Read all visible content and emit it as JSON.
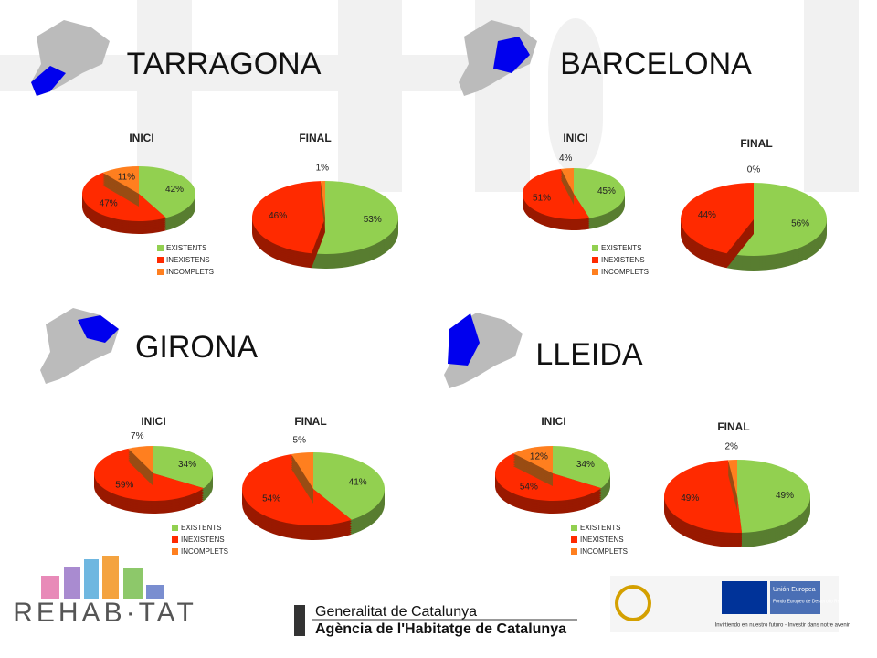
{
  "regions": [
    {
      "name": "TARRAGONA"
    },
    {
      "name": "BARCELONA"
    },
    {
      "name": "GIRONA"
    },
    {
      "name": "LLEIDA"
    }
  ],
  "chart_data": [
    {
      "type": "pie",
      "title": "INICI",
      "categories": [
        "EXISTENTS",
        "INEXISTENS",
        "INCOMPLETS"
      ],
      "values": [
        42,
        47,
        11
      ],
      "value_labels": [
        "42%",
        "47%",
        "11%"
      ],
      "colors": [
        "#92d050",
        "#ff2a00",
        "#ff7f1f"
      ],
      "legend": true
    },
    {
      "type": "pie",
      "title": "FINAL",
      "categories": [
        "EXISTENTS",
        "INEXISTENS",
        "INCOMPLETS"
      ],
      "values": [
        53,
        46,
        1
      ],
      "value_labels": [
        "53%",
        "46%",
        "1%"
      ],
      "colors": [
        "#92d050",
        "#ff2a00",
        "#ff7f1f"
      ],
      "legend": false
    },
    {
      "type": "pie",
      "title": "INICI",
      "categories": [
        "EXISTENTS",
        "INEXISTENS",
        "INCOMPLETS"
      ],
      "values": [
        45,
        51,
        4
      ],
      "value_labels": [
        "45%",
        "51%",
        "4%"
      ],
      "colors": [
        "#92d050",
        "#ff2a00",
        "#ff7f1f"
      ],
      "legend": true
    },
    {
      "type": "pie",
      "title": "FINAL",
      "categories": [
        "EXISTENTS",
        "INEXISTENS",
        "INCOMPLETS"
      ],
      "values": [
        56,
        44,
        0
      ],
      "value_labels": [
        "56%",
        "44%",
        "0%"
      ],
      "colors": [
        "#92d050",
        "#ff2a00",
        "#ff7f1f"
      ],
      "legend": false
    },
    {
      "type": "pie",
      "title": "INICI",
      "categories": [
        "EXISTENTS",
        "INEXISTENS",
        "INCOMPLETS"
      ],
      "values": [
        34,
        59,
        7
      ],
      "value_labels": [
        "34%",
        "59%",
        "7%"
      ],
      "colors": [
        "#92d050",
        "#ff2a00",
        "#ff7f1f"
      ],
      "legend": true
    },
    {
      "type": "pie",
      "title": "FINAL",
      "categories": [
        "EXISTENTS",
        "INEXISTENS",
        "INCOMPLETS"
      ],
      "values": [
        41,
        54,
        5
      ],
      "value_labels": [
        "41%",
        "54%",
        "5%"
      ],
      "colors": [
        "#92d050",
        "#ff2a00",
        "#ff7f1f"
      ],
      "legend": false
    },
    {
      "type": "pie",
      "title": "INICI",
      "categories": [
        "EXISTENTS",
        "INEXISTENS",
        "INCOMPLETS"
      ],
      "values": [
        34,
        54,
        12
      ],
      "value_labels": [
        "34%",
        "54%",
        "12%"
      ],
      "colors": [
        "#92d050",
        "#ff2a00",
        "#ff7f1f"
      ],
      "legend": true
    },
    {
      "type": "pie",
      "title": "FINAL",
      "categories": [
        "EXISTENTS",
        "INEXISTENS",
        "INCOMPLETS"
      ],
      "values": [
        49,
        49,
        2
      ],
      "value_labels": [
        "49%",
        "49%",
        "2%"
      ],
      "colors": [
        "#92d050",
        "#ff2a00",
        "#ff7f1f"
      ],
      "legend": false
    }
  ],
  "footer": {
    "logo": "REHAB·TAT",
    "gov_line1": "Generalitat de Catalunya",
    "gov_line2": "Agència de l'Habitatge de Catalunya",
    "eu_title": "Unión Europea",
    "eu_fund": "Fondo Europeo de Desarrollo Regional",
    "slogan": "Invirtiendo en nuestro futuro - Investir dans notre avenir"
  }
}
